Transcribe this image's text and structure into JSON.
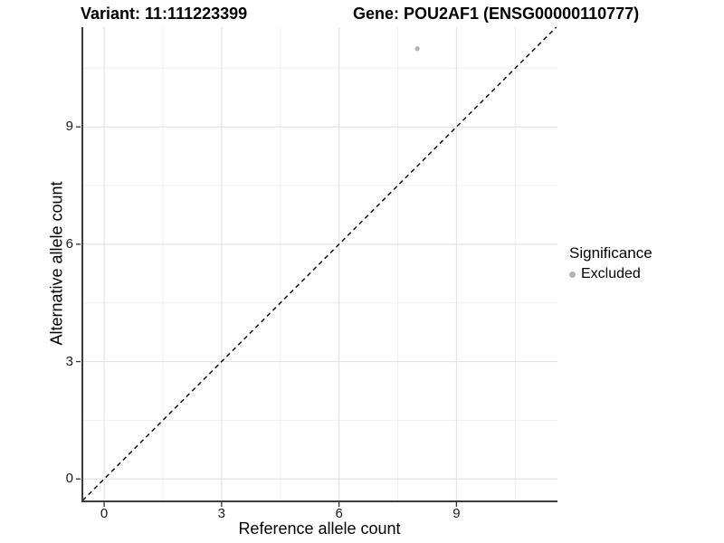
{
  "chart_data": {
    "type": "scatter",
    "title_left": "Variant: 11:111223399",
    "title_right": "Gene: POU2AF1 (ENSG00000110777)",
    "xlabel": "Reference allele count",
    "ylabel": "Alternative allele count",
    "xlim": [
      -0.58,
      11.58
    ],
    "ylim": [
      -0.55,
      11.55
    ],
    "x_ticks": [
      0,
      3,
      6,
      9
    ],
    "y_ticks": [
      0,
      3,
      6,
      9
    ],
    "x_minor_ticks": [
      1.5,
      4.5,
      7.5,
      10.5
    ],
    "y_minor_ticks": [
      1.5,
      4.5,
      7.5,
      10.5
    ],
    "grid": true,
    "legend_title": "Significance",
    "legend_position": "right",
    "identity_line": {
      "type": "dashed",
      "equation": "y = x",
      "color": "#111111"
    },
    "series": [
      {
        "name": "Excluded",
        "color": "#b3b3b3",
        "points": [
          {
            "x": 8,
            "y": 11
          }
        ]
      }
    ]
  },
  "colors": {
    "background": "#ffffff",
    "grid_major": "#e4e4e4",
    "grid_minor": "#efefef",
    "axis_line": "#3c3c3c",
    "tick_mark": "#333333",
    "point": "#b3b3b3"
  }
}
